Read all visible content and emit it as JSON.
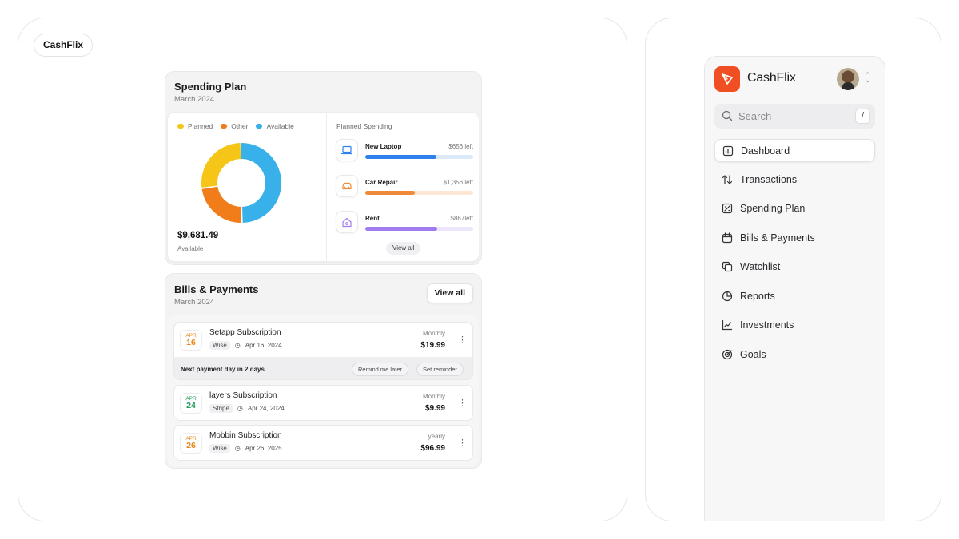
{
  "brand": "CashFlix",
  "spending_plan": {
    "title": "Spending Plan",
    "subtitle": "March 2024",
    "legend": [
      {
        "label": "Planned",
        "color": "#f5c518"
      },
      {
        "label": "Other",
        "color": "#f07c1a"
      },
      {
        "label": "Available",
        "color": "#38b0ea"
      }
    ],
    "available_amount": "$9,681.49",
    "available_label": "Available",
    "donut": [
      {
        "name": "Available",
        "value": 50,
        "color": "#38b0ea"
      },
      {
        "name": "Other",
        "value": 23,
        "color": "#f07c1a"
      },
      {
        "name": "Planned",
        "value": 27,
        "color": "#f5c518"
      }
    ],
    "planned_title": "Planned Spending",
    "planned_items": [
      {
        "name": "New Laptop",
        "left": "$656 left",
        "progress": 0.66,
        "color": "#2f80ed",
        "track": "#dce9fb",
        "icon": "laptop-icon"
      },
      {
        "name": "Car Repair",
        "left": "$1,356 left",
        "progress": 0.46,
        "color": "#ef8a3a",
        "track": "#fde6d4",
        "icon": "car-icon"
      },
      {
        "name": "Rent",
        "left": "$867left",
        "progress": 0.67,
        "color": "#a07cf0",
        "track": "#ece5fc",
        "icon": "home-icon"
      }
    ],
    "view_all": "View all"
  },
  "bills": {
    "title": "Bills & Payments",
    "subtitle": "March 2024",
    "view_all": "View all",
    "items": [
      {
        "month": "APR",
        "day": "16",
        "day_color": "#e8881a",
        "name": "Setapp Subscription",
        "source": "Wise",
        "date": "Apr 16, 2024",
        "frequency": "Monthly",
        "amount": "$19.99"
      },
      {
        "month": "APR",
        "day": "24",
        "day_color": "#1e9e5a",
        "name": "layers Subscription",
        "source": "Stripe",
        "date": "Apr 24, 2024",
        "frequency": "Monthly",
        "amount": "$9.99"
      },
      {
        "month": "APR",
        "day": "26",
        "day_color": "#e8881a",
        "name": "Mobbin Subscription",
        "source": "Wise",
        "date": "Apr 26, 2025",
        "frequency": "yearly",
        "amount": "$96.99"
      }
    ],
    "next_payment": "Next payment day in 2 days",
    "remind_later": "Remind me later",
    "set_reminder": "Set reminder"
  },
  "sidebar": {
    "app_name": "CashFlix",
    "search_placeholder": "Search",
    "search_shortcut": "/",
    "nav": [
      {
        "label": "Dashboard",
        "icon": "dashboard-icon",
        "active": true
      },
      {
        "label": "Transactions",
        "icon": "transactions-icon",
        "active": false
      },
      {
        "label": "Spending Plan",
        "icon": "spending-plan-icon",
        "active": false
      },
      {
        "label": "Bills & Payments",
        "icon": "calendar-icon",
        "active": false
      },
      {
        "label": "Watchlist",
        "icon": "watchlist-icon",
        "active": false
      },
      {
        "label": "Reports",
        "icon": "pie-chart-icon",
        "active": false
      },
      {
        "label": "Investments",
        "icon": "line-chart-icon",
        "active": false
      },
      {
        "label": "Goals",
        "icon": "target-icon",
        "active": false
      }
    ]
  }
}
